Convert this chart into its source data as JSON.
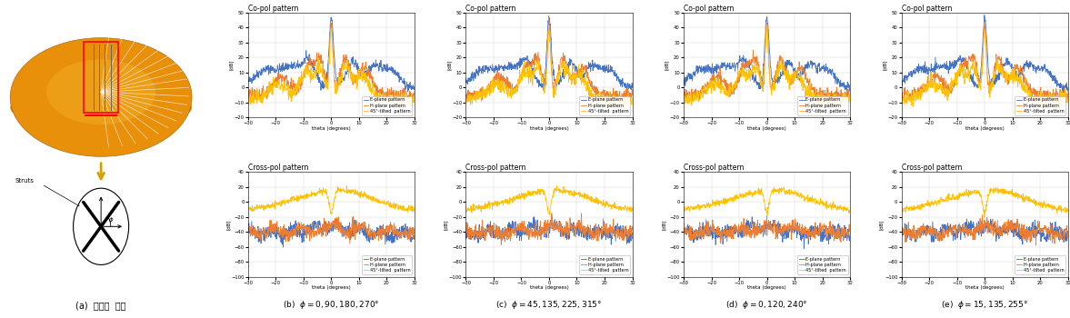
{
  "col_labels": [
    "(a)  스트럿  위치",
    "(b)  $\\phi=0,90,180,270\\degree$",
    "(c)  $\\phi=45,135,225,315\\degree$",
    "(d)  $\\phi=0,120,240\\degree$",
    "(e)  $\\phi=15,135,255\\degree$"
  ],
  "copol_title": "Co-pol pattern",
  "crosspol_title": "Cross-pol pattern",
  "xlabel": "theta (degrees)",
  "ylabel": "[dB]",
  "xlim": [
    -30,
    30
  ],
  "copol_ylim": [
    -20,
    50
  ],
  "crosspol_ylim": [
    -100,
    40
  ],
  "copol_yticks": [
    -20,
    -10,
    0,
    10,
    20,
    30,
    40,
    50
  ],
  "crosspol_yticks": [
    -100,
    -80,
    -60,
    -40,
    -20,
    0,
    20,
    40
  ],
  "xticks": [
    -30,
    -20,
    -10,
    0,
    10,
    20,
    30
  ],
  "colors": {
    "E_plane": "#4472C4",
    "H_plane": "#ED7D31",
    "tilted": "#FFC000"
  },
  "legend_labels": [
    "E-plane pattern",
    "H-plane pattern",
    "45°-tilted  pattern"
  ],
  "background": "#ffffff",
  "grid_color": "#d0d0d0"
}
